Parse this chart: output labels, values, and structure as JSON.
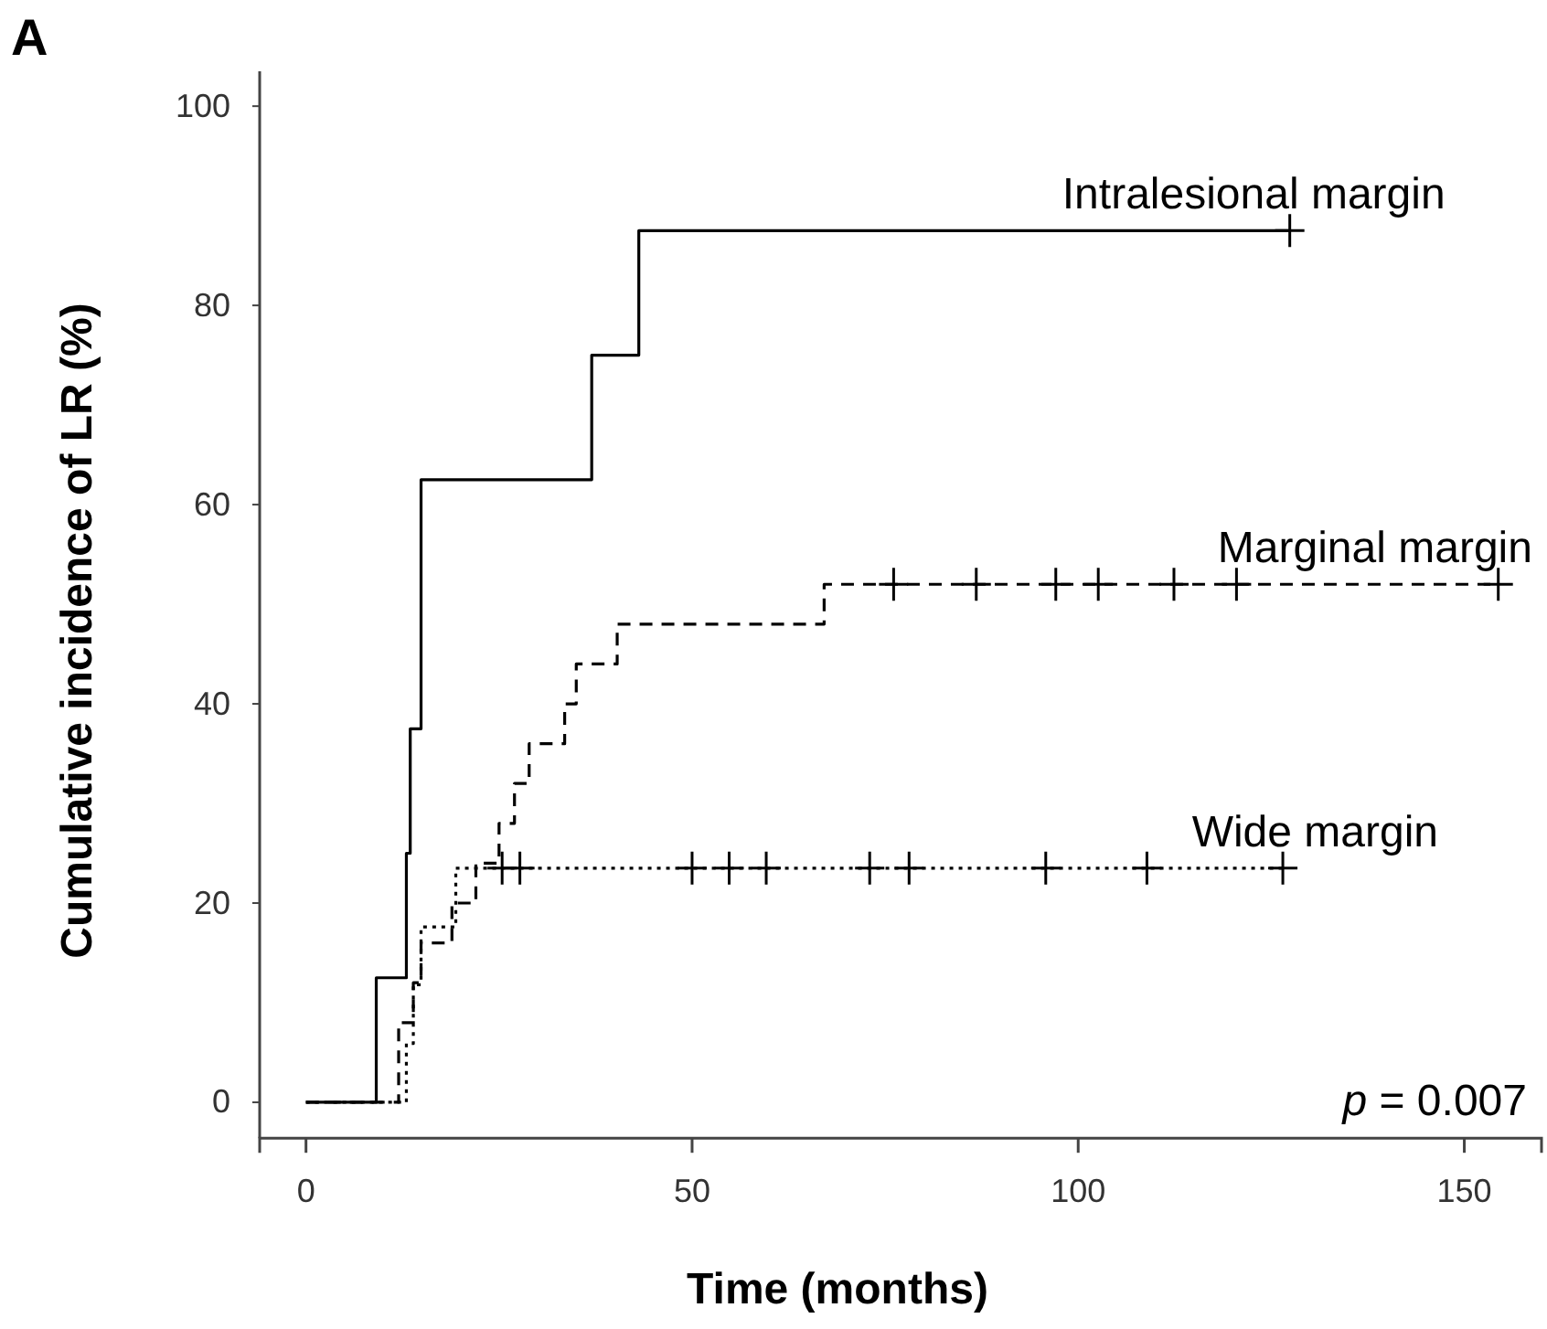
{
  "chart_data": {
    "type": "step",
    "title": "A",
    "xlabel": "Time (months)",
    "ylabel": "Cumulative incidence of LR (%)",
    "xlim": [
      -6,
      160
    ],
    "ylim": [
      -3.6,
      103.5
    ],
    "xticks": [
      0,
      50,
      100,
      150
    ],
    "yticks": [
      0,
      20,
      40,
      60,
      80,
      100
    ],
    "grid": false,
    "annotations": [
      "p = 0.007"
    ],
    "series": [
      {
        "name": "Intralesional margin",
        "color": "#000000",
        "line_style": "solid",
        "marker": "none",
        "x": [
          0,
          9.1,
          13,
          13.5,
          14.9,
          37,
          43.1,
          127.4
        ],
        "values": [
          0,
          12.5,
          25,
          37.5,
          62.5,
          75,
          87.5,
          87.5
        ]
      },
      {
        "name": "Marginal margin",
        "color": "#000000",
        "line_style": "dashed",
        "marker": "none",
        "x": [
          0,
          12,
          13.9,
          14.9,
          18.9,
          22,
          25,
          27,
          28.9,
          33.5,
          35,
          40.3,
          67.1,
          154.4
        ],
        "values": [
          0,
          8,
          12,
          16,
          20,
          24,
          28,
          32,
          36,
          40,
          44,
          48,
          52,
          52
        ]
      },
      {
        "name": "Wide margin",
        "color": "#000000",
        "line_style": "dotted",
        "marker": "none",
        "x": [
          0,
          13,
          13.9,
          14.9,
          19.4,
          126.5
        ],
        "values": [
          0,
          5.9,
          11.8,
          17.6,
          23.5,
          23.5
        ]
      },
      {
        "type": "scatter",
        "color": "#000000",
        "marker": "cross",
        "x": [
          127.4
        ],
        "values": [
          87.5
        ]
      },
      {
        "type": "scatter",
        "color": "#000000",
        "marker": "cross",
        "x": [
          76.1,
          86.8,
          97.1,
          102.6,
          112.4,
          120.5,
          154.4
        ],
        "values": [
          52,
          52,
          52,
          52,
          52,
          52,
          52
        ]
      },
      {
        "type": "scatter",
        "color": "#000000",
        "marker": "cross",
        "x": [
          25.4,
          27.7,
          50,
          54.8,
          59.6,
          73,
          78.1,
          95.8,
          108.9,
          126.5
        ],
        "values": [
          23.5,
          23.5,
          23.5,
          23.5,
          23.5,
          23.5,
          23.5,
          23.5,
          23.5,
          23.5
        ]
      }
    ]
  }
}
